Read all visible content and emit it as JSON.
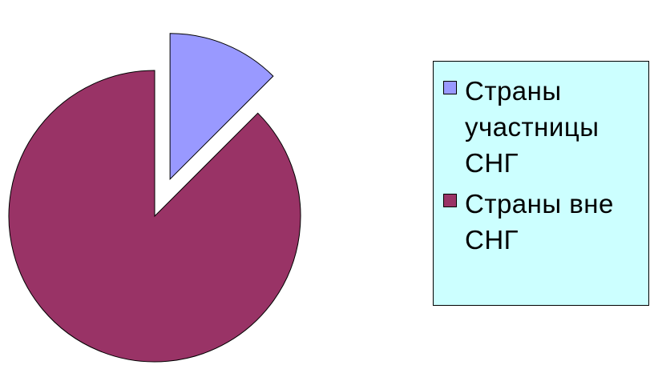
{
  "chart_data": {
    "type": "pie",
    "title": "",
    "slices": [
      {
        "label": "Страны участницы СНГ",
        "value": 12.5,
        "color": "#9999ff",
        "exploded": true
      },
      {
        "label": "Страны вне СНГ",
        "value": 87.5,
        "color": "#993366",
        "exploded": false
      }
    ],
    "legend": {
      "placement": "right",
      "background": "#ccffff",
      "items": [
        {
          "label": "Страны участницы СНГ",
          "color": "#9999ff"
        },
        {
          "label": "Страны вне СНГ",
          "color": "#993366"
        }
      ]
    }
  }
}
